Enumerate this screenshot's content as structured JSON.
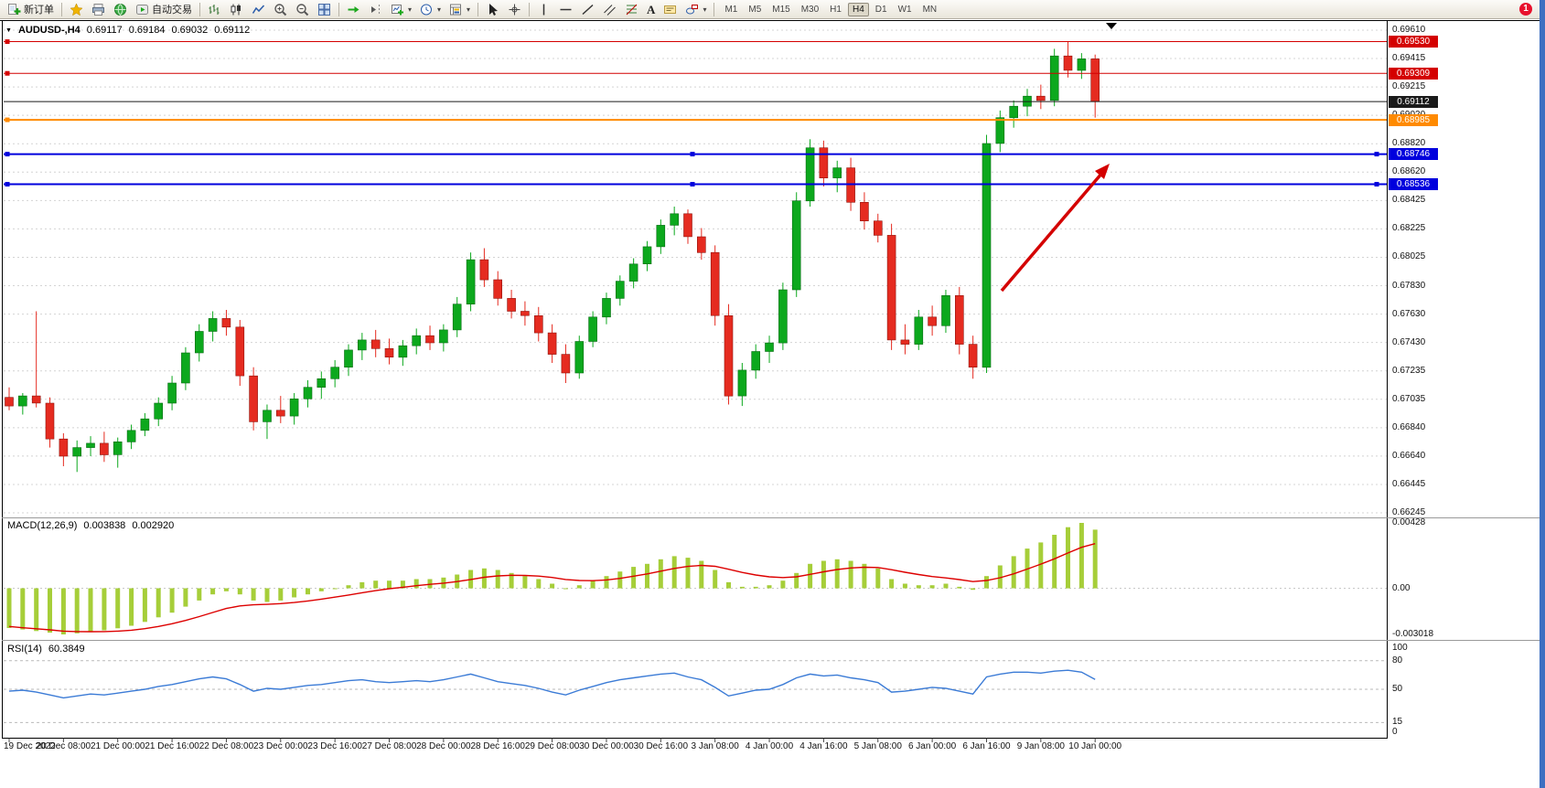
{
  "window": {
    "badge_count": "1",
    "frame_color": "#3e6fc1"
  },
  "toolbar": {
    "new_order_label": "新订单",
    "auto_trading_label": "自动交易",
    "text_tool_label": "A",
    "timeframes": [
      "M1",
      "M5",
      "M15",
      "M30",
      "H1",
      "H4",
      "D1",
      "W1",
      "MN"
    ],
    "active_timeframe": "H4"
  },
  "chart_data": {
    "type": "candlestick",
    "symbol": "AUDUSD-,H4",
    "ohlc": {
      "open": "0.69117",
      "high": "0.69184",
      "low": "0.69032",
      "close": "0.69112"
    },
    "up_color": "#0CA81D",
    "down_color": "#E52B20",
    "price_axis_labels": [
      "0.69610",
      "0.69415",
      "0.69215",
      "0.69020",
      "0.68820",
      "0.68620",
      "0.68425",
      "0.68225",
      "0.68025",
      "0.67830",
      "0.67630",
      "0.67430",
      "0.67235",
      "0.67035",
      "0.66840",
      "0.66640",
      "0.66445",
      "0.66245"
    ],
    "time_axis_labels": [
      "19 Dec 2022",
      "20 Dec 08:00",
      "21 Dec 00:00",
      "21 Dec 16:00",
      "22 Dec 08:00",
      "23 Dec 00:00",
      "23 Dec 16:00",
      "27 Dec 08:00",
      "28 Dec 00:00",
      "28 Dec 16:00",
      "29 Dec 08:00",
      "30 Dec 00:00",
      "30 Dec 16:00",
      "3 Jan 08:00",
      "4 Jan 00:00",
      "4 Jan 16:00",
      "5 Jan 08:00",
      "6 Jan 00:00",
      "6 Jan 16:00",
      "9 Jan 08:00",
      "10 Jan 00:00"
    ],
    "current_price": {
      "value": "0.69112",
      "color": "#1a1a1a"
    },
    "levels": [
      {
        "value": "0.69530",
        "price": 0.6953,
        "color": "#d40000",
        "width": 1,
        "handles": 1
      },
      {
        "value": "0.69309",
        "price": 0.69309,
        "color": "#d40000",
        "width": 1,
        "handles": 1
      },
      {
        "value": "0.68985",
        "price": 0.68985,
        "color": "#ff8a00",
        "width": 2,
        "handles": 1
      },
      {
        "value": "0.68746",
        "price": 0.68746,
        "color": "#0000dd",
        "width": 2,
        "handles": 3
      },
      {
        "value": "0.68536",
        "price": 0.68536,
        "color": "#0000dd",
        "width": 2,
        "handles": 3
      }
    ],
    "arrow": {
      "color": "#d40000"
    },
    "candles": [
      [
        0.6705,
        0.6712,
        0.6696,
        0.6699
      ],
      [
        0.6699,
        0.6708,
        0.6693,
        0.6706
      ],
      [
        0.6706,
        0.6765,
        0.6698,
        0.6701
      ],
      [
        0.6701,
        0.6705,
        0.667,
        0.6676
      ],
      [
        0.6676,
        0.668,
        0.6657,
        0.6664
      ],
      [
        0.6664,
        0.6675,
        0.6653,
        0.667
      ],
      [
        0.667,
        0.6678,
        0.6664,
        0.6673
      ],
      [
        0.6673,
        0.6681,
        0.666,
        0.6665
      ],
      [
        0.6665,
        0.6677,
        0.6656,
        0.6674
      ],
      [
        0.6674,
        0.6686,
        0.6669,
        0.6682
      ],
      [
        0.6682,
        0.6694,
        0.6678,
        0.669
      ],
      [
        0.669,
        0.6705,
        0.6685,
        0.6701
      ],
      [
        0.6701,
        0.672,
        0.6696,
        0.6715
      ],
      [
        0.6715,
        0.674,
        0.671,
        0.6736
      ],
      [
        0.6736,
        0.6756,
        0.673,
        0.6751
      ],
      [
        0.6751,
        0.6765,
        0.6744,
        0.676
      ],
      [
        0.676,
        0.6766,
        0.6748,
        0.6754
      ],
      [
        0.6754,
        0.6759,
        0.6713,
        0.672
      ],
      [
        0.672,
        0.6726,
        0.6682,
        0.6688
      ],
      [
        0.6688,
        0.67,
        0.6676,
        0.6696
      ],
      [
        0.6696,
        0.6706,
        0.6687,
        0.6692
      ],
      [
        0.6692,
        0.6708,
        0.6686,
        0.6704
      ],
      [
        0.6704,
        0.6717,
        0.6698,
        0.6712
      ],
      [
        0.6712,
        0.6723,
        0.6704,
        0.6718
      ],
      [
        0.6718,
        0.6731,
        0.6712,
        0.6726
      ],
      [
        0.6726,
        0.6742,
        0.672,
        0.6738
      ],
      [
        0.6738,
        0.675,
        0.6731,
        0.6745
      ],
      [
        0.6745,
        0.6752,
        0.6733,
        0.6739
      ],
      [
        0.6739,
        0.6746,
        0.6728,
        0.6733
      ],
      [
        0.6733,
        0.6745,
        0.6727,
        0.6741
      ],
      [
        0.6741,
        0.6753,
        0.6735,
        0.6748
      ],
      [
        0.6748,
        0.6755,
        0.6738,
        0.6743
      ],
      [
        0.6743,
        0.6756,
        0.6737,
        0.6752
      ],
      [
        0.6752,
        0.6775,
        0.6747,
        0.677
      ],
      [
        0.677,
        0.6806,
        0.6765,
        0.6801
      ],
      [
        0.6801,
        0.6809,
        0.6782,
        0.6787
      ],
      [
        0.6787,
        0.6793,
        0.6769,
        0.6774
      ],
      [
        0.6774,
        0.678,
        0.676,
        0.6765
      ],
      [
        0.6765,
        0.6772,
        0.6755,
        0.6762
      ],
      [
        0.6762,
        0.6768,
        0.6744,
        0.675
      ],
      [
        0.675,
        0.6756,
        0.6729,
        0.6735
      ],
      [
        0.6735,
        0.6742,
        0.6715,
        0.6722
      ],
      [
        0.6722,
        0.6748,
        0.6718,
        0.6744
      ],
      [
        0.6744,
        0.6765,
        0.674,
        0.6761
      ],
      [
        0.6761,
        0.6778,
        0.6756,
        0.6774
      ],
      [
        0.6774,
        0.679,
        0.6769,
        0.6786
      ],
      [
        0.6786,
        0.6802,
        0.6781,
        0.6798
      ],
      [
        0.6798,
        0.6814,
        0.6793,
        0.681
      ],
      [
        0.681,
        0.6829,
        0.6805,
        0.6825
      ],
      [
        0.6825,
        0.6838,
        0.6818,
        0.6833
      ],
      [
        0.6833,
        0.6836,
        0.6812,
        0.6817
      ],
      [
        0.6817,
        0.6823,
        0.6801,
        0.6806
      ],
      [
        0.6806,
        0.6811,
        0.6755,
        0.6762
      ],
      [
        0.6762,
        0.677,
        0.67,
        0.6706
      ],
      [
        0.6706,
        0.6729,
        0.6699,
        0.6724
      ],
      [
        0.6724,
        0.6742,
        0.6718,
        0.6737
      ],
      [
        0.6737,
        0.6748,
        0.6729,
        0.6743
      ],
      [
        0.6743,
        0.6785,
        0.6738,
        0.678
      ],
      [
        0.678,
        0.6848,
        0.6775,
        0.6842
      ],
      [
        0.6842,
        0.6885,
        0.6838,
        0.6879
      ],
      [
        0.6879,
        0.6884,
        0.6852,
        0.6858
      ],
      [
        0.6858,
        0.687,
        0.6848,
        0.6865
      ],
      [
        0.6865,
        0.6872,
        0.6835,
        0.6841
      ],
      [
        0.6841,
        0.6848,
        0.6822,
        0.6828
      ],
      [
        0.6828,
        0.6833,
        0.6813,
        0.6818
      ],
      [
        0.6818,
        0.6826,
        0.6738,
        0.6745
      ],
      [
        0.6745,
        0.6756,
        0.6735,
        0.6742
      ],
      [
        0.6742,
        0.6766,
        0.6738,
        0.6761
      ],
      [
        0.6761,
        0.6769,
        0.6748,
        0.6755
      ],
      [
        0.6755,
        0.678,
        0.675,
        0.6776
      ],
      [
        0.6776,
        0.6782,
        0.6735,
        0.6742
      ],
      [
        0.6742,
        0.6748,
        0.6718,
        0.6726
      ],
      [
        0.6726,
        0.6888,
        0.6722,
        0.6882
      ],
      [
        0.6882,
        0.6905,
        0.6876,
        0.69
      ],
      [
        0.69,
        0.6912,
        0.6893,
        0.6908
      ],
      [
        0.6908,
        0.692,
        0.6901,
        0.6915
      ],
      [
        0.6915,
        0.6923,
        0.6906,
        0.6912
      ],
      [
        0.6912,
        0.6948,
        0.6908,
        0.6943
      ],
      [
        0.6943,
        0.6953,
        0.6928,
        0.6933
      ],
      [
        0.6933,
        0.6945,
        0.6927,
        0.6941
      ],
      [
        0.6941,
        0.6944,
        0.69,
        0.69112
      ]
    ],
    "macd": {
      "label": "MACD(12,26,9)",
      "value": "0.003838",
      "signal_value": "0.002920",
      "axis_labels": [
        "0.00428",
        "0.00",
        "-0.003018"
      ],
      "max": 0.00428,
      "min": -0.003018,
      "bar_color": "#A6CE39",
      "line_color": "#DD0000",
      "histogram": [
        -0.0026,
        -0.0027,
        -0.0028,
        -0.0029,
        -0.003018,
        -0.00295,
        -0.00285,
        -0.00275,
        -0.00262,
        -0.00245,
        -0.0022,
        -0.0019,
        -0.0016,
        -0.0012,
        -0.0008,
        -0.0004,
        -0.0002,
        -0.0004,
        -0.0008,
        -0.0009,
        -0.0008,
        -0.0006,
        -0.0004,
        -0.0002,
        0,
        0.0002,
        0.0004,
        0.0005,
        0.0005,
        0.0005,
        0.0006,
        0.0006,
        0.0007,
        0.0009,
        0.0012,
        0.0013,
        0.0012,
        0.001,
        0.0008,
        0.0006,
        0.0003,
        0,
        0.0002,
        0.0005,
        0.0008,
        0.0011,
        0.0014,
        0.0016,
        0.0019,
        0.0021,
        0.002,
        0.0018,
        0.0012,
        0.0004,
        0.0001,
        0.0001,
        0.0002,
        0.0005,
        0.001,
        0.0016,
        0.0018,
        0.0019,
        0.0018,
        0.0016,
        0.0013,
        0.0006,
        0.0003,
        0.0002,
        0.0002,
        0.0003,
        0.0001,
        -0.0001,
        0.0008,
        0.0015,
        0.0021,
        0.0026,
        0.003,
        0.0035,
        0.004,
        0.00428,
        0.003838
      ],
      "signal": [
        -0.0025,
        -0.00258,
        -0.00265,
        -0.00272,
        -0.0028,
        -0.00283,
        -0.00284,
        -0.00283,
        -0.0028,
        -0.00274,
        -0.00264,
        -0.0025,
        -0.00232,
        -0.0021,
        -0.00185,
        -0.00158,
        -0.00132,
        -0.00115,
        -0.00108,
        -0.00105,
        -0.001,
        -0.00093,
        -0.00083,
        -0.00071,
        -0.00058,
        -0.00044,
        -0.00029,
        -0.00015,
        -3e-05,
        7e-05,
        0.00017,
        0.00026,
        0.00034,
        0.00044,
        0.00058,
        0.00072,
        0.00081,
        0.00085,
        0.00084,
        0.0008,
        0.00071,
        0.00058,
        0.00051,
        0.0005,
        0.00055,
        0.00065,
        0.00079,
        0.00094,
        0.00112,
        0.0013,
        0.00143,
        0.0015,
        0.00144,
        0.00125,
        0.00104,
        0.00087,
        0.00075,
        0.0007,
        0.00075,
        0.00091,
        0.00108,
        0.00123,
        0.00133,
        0.00138,
        0.00136,
        0.00122,
        0.00105,
        0.0009,
        0.00077,
        0.00068,
        0.00057,
        0.00044,
        0.00051,
        0.00069,
        0.00095,
        0.00126,
        0.00158,
        0.00193,
        0.00231,
        0.00268,
        0.00292
      ]
    },
    "rsi": {
      "label": "RSI(14)",
      "value": "60.3849",
      "axis_labels": [
        "100",
        "80",
        "50",
        "15",
        "0"
      ],
      "axis_values": [
        100,
        80,
        50,
        15,
        0
      ],
      "levels": [
        80,
        50,
        15
      ],
      "line_color": "#3B7BD6",
      "values": [
        48,
        49,
        47,
        44,
        41,
        43,
        45,
        44,
        46,
        48,
        50,
        53,
        55,
        58,
        61,
        63,
        61,
        55,
        48,
        51,
        50,
        52,
        54,
        55,
        57,
        59,
        60,
        58,
        57,
        58,
        59,
        58,
        60,
        63,
        66,
        62,
        58,
        56,
        54,
        51,
        47,
        44,
        49,
        53,
        57,
        60,
        62,
        64,
        66,
        67,
        63,
        60,
        52,
        43,
        46,
        49,
        50,
        55,
        62,
        66,
        64,
        65,
        62,
        60,
        57,
        47,
        48,
        50,
        52,
        51,
        48,
        45,
        63,
        66,
        68,
        68,
        67,
        69,
        70,
        68,
        60.3849
      ]
    }
  }
}
